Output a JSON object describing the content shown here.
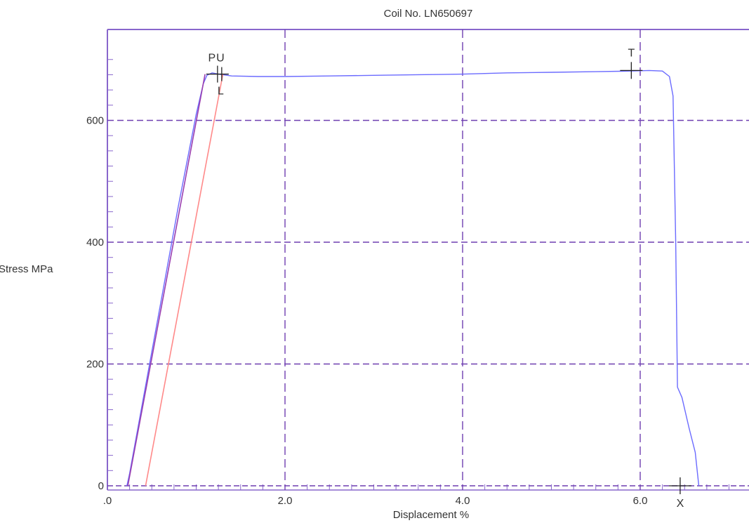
{
  "chart_data": {
    "type": "line",
    "title": "Coil No. LN650697",
    "xlabel": "Displacement %",
    "ylabel": "Stress MPa",
    "xlim": [
      0,
      7.25
    ],
    "ylim": [
      -8,
      750
    ],
    "x_tick_labels": [
      {
        "value": 0,
        "label": ".0"
      },
      {
        "value": 2,
        "label": "2.0"
      },
      {
        "value": 4,
        "label": "4.0"
      },
      {
        "value": 6,
        "label": "6.0"
      }
    ],
    "y_tick_labels": [
      {
        "value": 0,
        "label": "0"
      },
      {
        "value": 200,
        "label": "200"
      },
      {
        "value": 400,
        "label": "400"
      },
      {
        "value": 600,
        "label": "600"
      }
    ],
    "grid": true,
    "legend": "none",
    "colors": {
      "curve": "#6b6bff",
      "elastic_line": "#9a3fb0",
      "offset_line": "#ff8a8a",
      "grid": "#6f3fb0",
      "axis": "#8866cc",
      "marker": "#222222"
    },
    "series": [
      {
        "color": "#6b6bff",
        "points": [
          [
            0.22,
            0
          ],
          [
            0.25,
            20
          ],
          [
            0.4,
            140
          ],
          [
            0.6,
            300
          ],
          [
            0.8,
            460
          ],
          [
            1.0,
            610
          ],
          [
            1.08,
            660
          ],
          [
            1.12,
            674
          ],
          [
            1.18,
            678
          ],
          [
            1.25,
            676
          ],
          [
            1.4,
            673
          ],
          [
            1.7,
            672
          ],
          [
            2.0,
            672
          ],
          [
            2.5,
            673
          ],
          [
            3.0,
            674
          ],
          [
            3.5,
            675
          ],
          [
            4.0,
            676
          ],
          [
            4.5,
            678
          ],
          [
            5.0,
            679
          ],
          [
            5.5,
            680
          ],
          [
            5.9,
            681
          ],
          [
            6.1,
            682
          ],
          [
            6.25,
            681
          ],
          [
            6.33,
            672
          ],
          [
            6.37,
            640
          ],
          [
            6.4,
            400
          ],
          [
            6.42,
            162
          ],
          [
            6.47,
            145
          ],
          [
            6.55,
            95
          ],
          [
            6.62,
            55
          ],
          [
            6.66,
            0
          ]
        ]
      },
      {
        "color": "#9a3fb0",
        "points": [
          [
            0.23,
            0
          ],
          [
            1.1,
            676
          ]
        ]
      },
      {
        "color": "#ff8a8a",
        "points": [
          [
            0.43,
            0
          ],
          [
            1.3,
            676
          ]
        ]
      }
    ],
    "annotations": [
      {
        "text": "P",
        "x": 1.24,
        "y": 676
      },
      {
        "text": "U",
        "x": 1.24,
        "y": 676
      },
      {
        "text": "L",
        "x": 1.26,
        "y": 676
      },
      {
        "text": "T",
        "x": 5.9,
        "y": 682
      },
      {
        "text": "X",
        "x": 6.45,
        "y": 0
      }
    ]
  }
}
